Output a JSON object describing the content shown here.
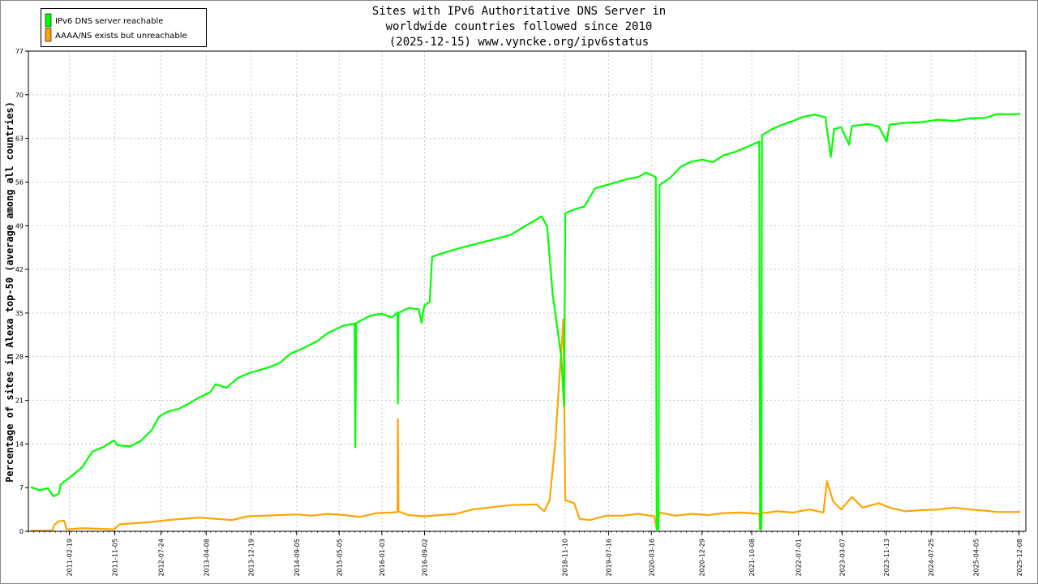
{
  "chart_data": {
    "type": "line",
    "title_lines": [
      "Sites with IPv6 Authoritative DNS Server in",
      "worldwide countries followed since 2010",
      "(2025-12-15) www.vyncke.org/ipv6status"
    ],
    "ylabel": "Percentage of sites in Alexa top-50 (average among all countries)",
    "xlabel": "",
    "ylim": [
      0,
      77
    ],
    "y_ticks": [
      0,
      7,
      14,
      21,
      28,
      35,
      42,
      49,
      56,
      63,
      70,
      77
    ],
    "xlim": [
      "2010-07-01",
      "2026-01-15"
    ],
    "x_ticks": [
      "2011-02-19",
      "2011-11-05",
      "2012-07-24",
      "2013-04-08",
      "2013-12-19",
      "2014-09-05",
      "2015-05-05",
      "2016-01-03",
      "2016-09-02",
      "2018-11-10",
      "2019-07-16",
      "2020-03-16",
      "2020-12-29",
      "2021-10-08",
      "2022-07-01",
      "2023-03-07",
      "2023-11-13",
      "2024-07-25",
      "2025-04-05",
      "2025-12-08"
    ],
    "grid": true,
    "legend_position": "top-left",
    "series": [
      {
        "name": "IPv6 DNS server reachable",
        "color": "#00ff00",
        "points": [
          [
            "2010-07-15",
            7.1
          ],
          [
            "2010-09-01",
            6.6
          ],
          [
            "2010-10-20",
            6.9
          ],
          [
            "2010-11-20",
            5.6
          ],
          [
            "2010-12-20",
            6.0
          ],
          [
            "2011-01-01",
            7.5
          ],
          [
            "2011-03-01",
            8.8
          ],
          [
            "2011-05-01",
            10.2
          ],
          [
            "2011-07-01",
            12.8
          ],
          [
            "2011-09-01",
            13.5
          ],
          [
            "2011-11-01",
            14.6
          ],
          [
            "2011-11-20",
            13.8
          ],
          [
            "2012-02-01",
            13.6
          ],
          [
            "2012-04-01",
            14.5
          ],
          [
            "2012-06-01",
            16.2
          ],
          [
            "2012-07-15",
            18.4
          ],
          [
            "2012-09-01",
            19.2
          ],
          [
            "2012-11-01",
            19.6
          ],
          [
            "2013-01-01",
            20.5
          ],
          [
            "2013-03-01",
            21.5
          ],
          [
            "2013-05-01",
            22.3
          ],
          [
            "2013-06-01",
            23.6
          ],
          [
            "2013-08-01",
            23.0
          ],
          [
            "2013-10-01",
            24.5
          ],
          [
            "2013-12-01",
            25.3
          ],
          [
            "2014-02-01",
            25.8
          ],
          [
            "2014-04-01",
            26.3
          ],
          [
            "2014-06-01",
            27.0
          ],
          [
            "2014-08-01",
            28.5
          ],
          [
            "2014-10-01",
            29.2
          ],
          [
            "2015-01-01",
            30.5
          ],
          [
            "2015-03-01",
            31.8
          ],
          [
            "2015-06-01",
            33.0
          ],
          [
            "2015-08-01",
            33.3
          ],
          [
            "2015-08-05",
            13.5
          ],
          [
            "2015-08-10",
            33.4
          ],
          [
            "2015-11-01",
            34.6
          ],
          [
            "2016-01-01",
            34.9
          ],
          [
            "2016-03-01",
            34.3
          ],
          [
            "2016-04-01",
            35.1
          ],
          [
            "2016-04-03",
            20.5
          ],
          [
            "2016-04-06",
            35.0
          ],
          [
            "2016-06-01",
            35.8
          ],
          [
            "2016-08-01",
            35.6
          ],
          [
            "2016-08-15",
            33.4
          ],
          [
            "2016-09-01",
            36.2
          ],
          [
            "2016-10-01",
            36.8
          ],
          [
            "2016-10-15",
            44.0
          ],
          [
            "2016-12-01",
            44.5
          ],
          [
            "2017-04-01",
            45.5
          ],
          [
            "2017-10-01",
            46.8
          ],
          [
            "2018-01-01",
            47.5
          ],
          [
            "2018-05-01",
            49.5
          ],
          [
            "2018-07-01",
            50.5
          ],
          [
            "2018-08-01",
            48.8
          ],
          [
            "2018-09-01",
            38.0
          ],
          [
            "2018-10-20",
            28.0
          ],
          [
            "2018-11-05",
            20.0
          ],
          [
            "2018-11-12",
            51.0
          ],
          [
            "2019-01-01",
            51.6
          ],
          [
            "2019-03-01",
            52.1
          ],
          [
            "2019-05-01",
            55.0
          ],
          [
            "2019-07-01",
            55.5
          ],
          [
            "2019-09-01",
            56.0
          ],
          [
            "2019-11-01",
            56.5
          ],
          [
            "2020-01-01",
            56.8
          ],
          [
            "2020-02-15",
            57.5
          ],
          [
            "2020-04-10",
            56.8
          ],
          [
            "2020-04-15",
            0.3
          ],
          [
            "2020-04-25",
            0.3
          ],
          [
            "2020-05-01",
            55.5
          ],
          [
            "2020-07-01",
            56.7
          ],
          [
            "2020-09-01",
            58.5
          ],
          [
            "2020-11-01",
            59.3
          ],
          [
            "2021-01-01",
            59.6
          ],
          [
            "2021-03-01",
            59.2
          ],
          [
            "2021-05-01",
            60.3
          ],
          [
            "2021-07-01",
            60.8
          ],
          [
            "2021-09-01",
            61.5
          ],
          [
            "2021-11-20",
            62.5
          ],
          [
            "2021-11-25",
            0.3
          ],
          [
            "2021-12-02",
            0.3
          ],
          [
            "2021-12-05",
            63.5
          ],
          [
            "2022-02-01",
            64.5
          ],
          [
            "2022-04-01",
            65.2
          ],
          [
            "2022-06-01",
            65.8
          ],
          [
            "2022-08-01",
            66.5
          ],
          [
            "2022-10-01",
            66.8
          ],
          [
            "2022-12-01",
            66.4
          ],
          [
            "2023-01-01",
            60.0
          ],
          [
            "2023-01-20",
            64.5
          ],
          [
            "2023-03-01",
            64.8
          ],
          [
            "2023-04-15",
            62.0
          ],
          [
            "2023-05-01",
            65.0
          ],
          [
            "2023-08-01",
            65.3
          ],
          [
            "2023-10-01",
            64.9
          ],
          [
            "2023-11-15",
            62.5
          ],
          [
            "2023-12-01",
            65.2
          ],
          [
            "2024-03-01",
            65.5
          ],
          [
            "2024-06-01",
            65.6
          ],
          [
            "2024-09-01",
            66.0
          ],
          [
            "2024-12-01",
            65.8
          ],
          [
            "2025-03-01",
            66.2
          ],
          [
            "2025-06-01",
            66.3
          ],
          [
            "2025-08-01",
            66.9
          ],
          [
            "2025-12-15",
            66.9
          ]
        ]
      },
      {
        "name": "AAAA/NS exists but unreachable",
        "color": "#ffa500",
        "points": [
          [
            "2010-07-15",
            0.1
          ],
          [
            "2010-11-15",
            0.1
          ],
          [
            "2010-11-25",
            1.0
          ],
          [
            "2010-12-20",
            1.6
          ],
          [
            "2011-01-20",
            1.7
          ],
          [
            "2011-02-05",
            0.3
          ],
          [
            "2011-05-01",
            0.5
          ],
          [
            "2011-08-01",
            0.4
          ],
          [
            "2011-11-01",
            0.3
          ],
          [
            "2011-12-01",
            1.1
          ],
          [
            "2012-03-01",
            1.3
          ],
          [
            "2012-06-01",
            1.5
          ],
          [
            "2012-09-01",
            1.8
          ],
          [
            "2012-12-01",
            2.0
          ],
          [
            "2013-03-01",
            2.2
          ],
          [
            "2013-06-01",
            2.0
          ],
          [
            "2013-09-01",
            1.8
          ],
          [
            "2013-12-01",
            2.4
          ],
          [
            "2014-03-01",
            2.5
          ],
          [
            "2014-06-01",
            2.6
          ],
          [
            "2014-09-01",
            2.7
          ],
          [
            "2014-12-01",
            2.5
          ],
          [
            "2015-03-01",
            2.8
          ],
          [
            "2015-06-01",
            2.6
          ],
          [
            "2015-09-01",
            2.3
          ],
          [
            "2015-12-01",
            2.9
          ],
          [
            "2016-03-01",
            3.0
          ],
          [
            "2016-04-01",
            3.1
          ],
          [
            "2016-04-03",
            18.0
          ],
          [
            "2016-04-06",
            3.2
          ],
          [
            "2016-06-01",
            2.6
          ],
          [
            "2016-09-01",
            2.4
          ],
          [
            "2016-12-01",
            2.6
          ],
          [
            "2017-03-01",
            2.8
          ],
          [
            "2017-06-01",
            3.5
          ],
          [
            "2017-09-01",
            3.8
          ],
          [
            "2018-01-01",
            4.2
          ],
          [
            "2018-06-01",
            4.3
          ],
          [
            "2018-07-15",
            3.2
          ],
          [
            "2018-08-15",
            5.0
          ],
          [
            "2018-09-15",
            14.0
          ],
          [
            "2018-10-15",
            27.0
          ],
          [
            "2018-11-01",
            34.0
          ],
          [
            "2018-11-12",
            5.0
          ],
          [
            "2019-01-01",
            4.5
          ],
          [
            "2019-02-01",
            2.0
          ],
          [
            "2019-04-01",
            1.8
          ],
          [
            "2019-07-01",
            2.5
          ],
          [
            "2019-10-01",
            2.5
          ],
          [
            "2020-01-01",
            2.8
          ],
          [
            "2020-04-01",
            2.4
          ],
          [
            "2020-04-15",
            0.3
          ],
          [
            "2020-05-01",
            3.0
          ],
          [
            "2020-08-01",
            2.5
          ],
          [
            "2020-11-01",
            2.8
          ],
          [
            "2021-02-01",
            2.6
          ],
          [
            "2021-05-01",
            2.9
          ],
          [
            "2021-08-01",
            3.0
          ],
          [
            "2021-11-20",
            2.8
          ],
          [
            "2021-11-25",
            0.3
          ],
          [
            "2021-12-05",
            2.9
          ],
          [
            "2022-03-01",
            3.2
          ],
          [
            "2022-06-01",
            3.0
          ],
          [
            "2022-09-01",
            3.5
          ],
          [
            "2022-11-20",
            3.0
          ],
          [
            "2022-12-10",
            8.0
          ],
          [
            "2023-01-15",
            4.8
          ],
          [
            "2023-03-01",
            3.5
          ],
          [
            "2023-05-01",
            5.5
          ],
          [
            "2023-07-01",
            3.8
          ],
          [
            "2023-10-01",
            4.5
          ],
          [
            "2023-12-01",
            3.8
          ],
          [
            "2024-03-01",
            3.2
          ],
          [
            "2024-06-01",
            3.4
          ],
          [
            "2024-09-01",
            3.5
          ],
          [
            "2024-12-01",
            3.8
          ],
          [
            "2025-03-01",
            3.5
          ],
          [
            "2025-06-01",
            3.3
          ],
          [
            "2025-08-01",
            3.1
          ],
          [
            "2025-12-15",
            3.1
          ]
        ]
      }
    ]
  }
}
